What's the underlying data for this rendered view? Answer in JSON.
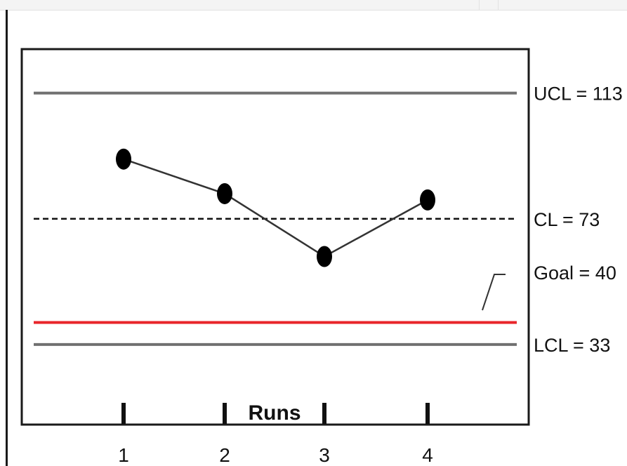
{
  "chart_data": {
    "type": "line",
    "xlabel": "Runs",
    "ylabel": "",
    "title": "",
    "x": [
      1,
      2,
      3,
      4
    ],
    "series": [
      {
        "values": [
          92,
          81,
          61,
          79
        ]
      }
    ],
    "reference_lines": [
      {
        "key": "ucl",
        "label": "UCL = 113",
        "value": 113,
        "style": "solid",
        "color": "#707070"
      },
      {
        "key": "cl",
        "label": "CL = 73",
        "value": 73,
        "style": "dashed",
        "color": "#111111"
      },
      {
        "key": "goal",
        "label": "Goal = 40",
        "value": 40,
        "style": "solid",
        "color": "#e8262b"
      },
      {
        "key": "lcl",
        "label": "LCL = 33",
        "value": 33,
        "style": "solid",
        "color": "#707070"
      }
    ],
    "ylim": [
      7.5,
      127
    ],
    "grid": false,
    "legend": "none"
  }
}
